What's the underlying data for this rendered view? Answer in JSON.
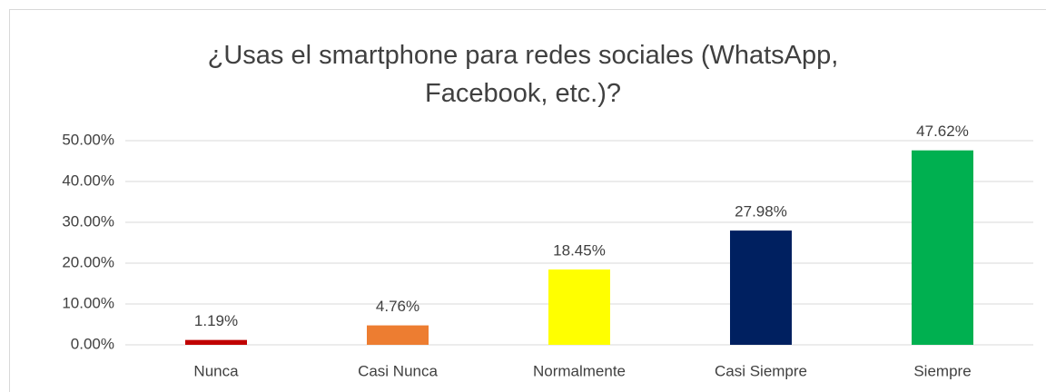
{
  "chart_data": {
    "type": "bar",
    "title": "¿Usas el smartphone para redes sociales (WhatsApp, Facebook, etc.)?",
    "categories": [
      "Nunca",
      "Casi Nunca",
      "Normalmente",
      "Casi Siempre",
      "Siempre"
    ],
    "values": [
      1.19,
      4.76,
      18.45,
      27.98,
      47.62
    ],
    "value_labels": [
      "1.19%",
      "4.76%",
      "18.45%",
      "27.98%",
      "47.62%"
    ],
    "colors": [
      "#c00000",
      "#ed7d31",
      "#ffff00",
      "#002060",
      "#00b050"
    ],
    "ylim": [
      0,
      50
    ],
    "yticks": [
      {
        "value": 0,
        "label": "0.00%"
      },
      {
        "value": 10,
        "label": "10.00%"
      },
      {
        "value": 20,
        "label": "20.00%"
      },
      {
        "value": 30,
        "label": "30.00%"
      },
      {
        "value": 40,
        "label": "40.00%"
      },
      {
        "value": 50,
        "label": "50.00%"
      }
    ],
    "grid": true
  }
}
